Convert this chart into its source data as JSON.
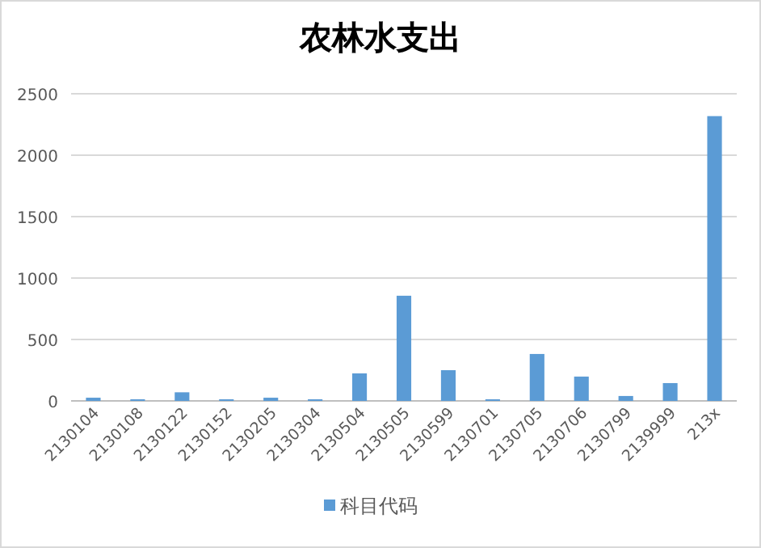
{
  "chart_data": {
    "type": "bar",
    "title": "农林水支出",
    "categories": [
      "2130104",
      "2130108",
      "2130122",
      "2130152",
      "2130205",
      "2130304",
      "2130504",
      "2130505",
      "2130599",
      "2130701",
      "2130705",
      "2130706",
      "2130799",
      "2139999",
      "213x"
    ],
    "series": [
      {
        "name": "科目代码",
        "color": "#5b9bd5",
        "values": [
          26,
          13,
          70,
          13,
          26,
          13,
          224,
          856,
          250,
          13,
          382,
          198,
          40,
          145,
          2318
        ]
      }
    ],
    "ylim": [
      0,
      2500
    ],
    "yticks": [
      0,
      500,
      1000,
      1500,
      2000,
      2500
    ],
    "grid": "y",
    "legend": "bottom"
  }
}
